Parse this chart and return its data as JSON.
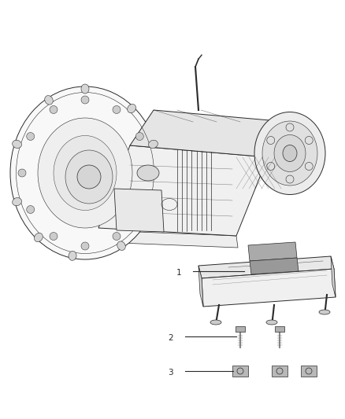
{
  "bg_color": "#ffffff",
  "fig_width": 4.38,
  "fig_height": 5.33,
  "dpi": 100,
  "line_color": "#2a2a2a",
  "label_fontsize": 7.5,
  "trans_color": "#f5f5f5",
  "dark_gray": "#888888",
  "mid_gray": "#aaaaaa",
  "light_gray": "#dddddd"
}
